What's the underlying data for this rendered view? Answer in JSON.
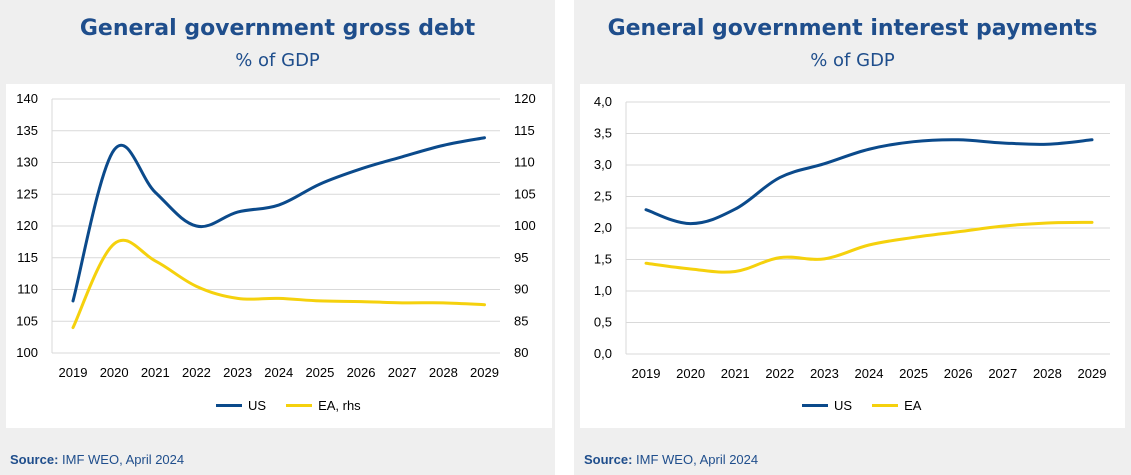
{
  "colors": {
    "us": "#0b4a8b",
    "ea": "#f5d10d",
    "title": "#1f4e8c",
    "grid": "#d9d9d9"
  },
  "source_label": "Source:",
  "source_text": "IMF WEO, April 2024",
  "chart_data": [
    {
      "type": "line",
      "title": "General government gross debt",
      "subtitle": "% of GDP",
      "x": [
        "2019",
        "2020",
        "2021",
        "2022",
        "2023",
        "2024",
        "2025",
        "2026",
        "2027",
        "2028",
        "2029"
      ],
      "y_left": {
        "ylim": [
          100,
          140
        ],
        "ticks": [
          "100",
          "105",
          "110",
          "115",
          "120",
          "125",
          "130",
          "135",
          "140"
        ]
      },
      "y_right": {
        "ylim": [
          80,
          120
        ],
        "ticks": [
          "80",
          "85",
          "90",
          "95",
          "100",
          "105",
          "110",
          "115",
          "120"
        ]
      },
      "grid": true,
      "legend_position": "bottom",
      "series": [
        {
          "name": "US",
          "axis": "left",
          "color_key": "us",
          "values": [
            108.2,
            132.0,
            125.3,
            120.0,
            122.2,
            123.3,
            126.6,
            129.0,
            130.9,
            132.7,
            133.9
          ]
        },
        {
          "name": "EA, rhs",
          "axis": "right",
          "color_key": "ea",
          "values": [
            84.0,
            97.2,
            94.5,
            90.5,
            88.6,
            88.6,
            88.2,
            88.1,
            87.9,
            87.9,
            87.6
          ]
        }
      ]
    },
    {
      "type": "line",
      "title": "General government interest payments",
      "subtitle": "% of GDP",
      "x": [
        "2019",
        "2020",
        "2021",
        "2022",
        "2023",
        "2024",
        "2025",
        "2026",
        "2027",
        "2028",
        "2029"
      ],
      "y_left": {
        "ylim": [
          0,
          4
        ],
        "ticks": [
          "0,0",
          "0,5",
          "1,0",
          "1,5",
          "2,0",
          "2,5",
          "3,0",
          "3,5",
          "4,0"
        ]
      },
      "grid": true,
      "legend_position": "bottom",
      "series": [
        {
          "name": "US",
          "axis": "left",
          "color_key": "us",
          "values": [
            2.29,
            2.07,
            2.3,
            2.8,
            3.02,
            3.25,
            3.37,
            3.4,
            3.35,
            3.33,
            3.4
          ]
        },
        {
          "name": "EA",
          "axis": "left",
          "color_key": "ea",
          "values": [
            1.44,
            1.35,
            1.31,
            1.53,
            1.51,
            1.73,
            1.85,
            1.94,
            2.03,
            2.08,
            2.09
          ]
        }
      ]
    }
  ]
}
